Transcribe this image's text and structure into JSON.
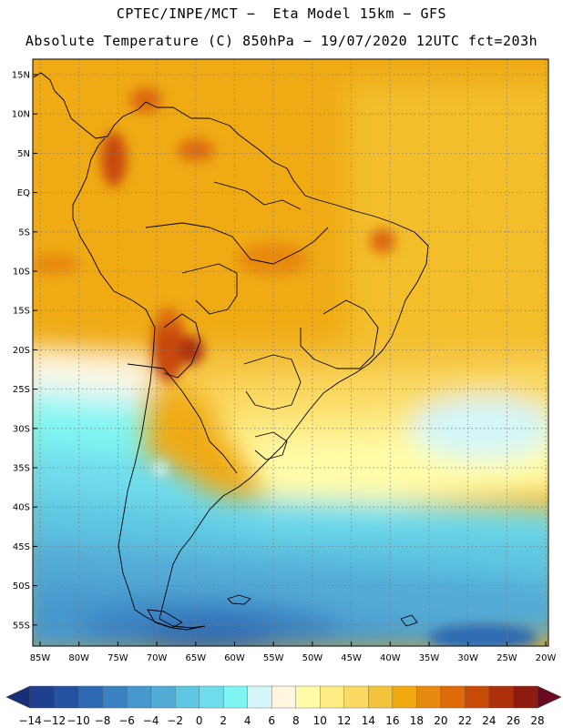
{
  "title_line1": "CPTEC/INPE/MCT −  Eta Model 15km − GFS",
  "title_line2": "Absolute Temperature (C) 850hPa − 19/07/2020 12UTC fct=203h",
  "lat_labels": [
    "15N",
    "10N",
    "5N",
    "EQ",
    "5S",
    "10S",
    "15S",
    "20S",
    "25S",
    "30S",
    "35S",
    "40S",
    "45S",
    "50S",
    "55S"
  ],
  "lon_labels": [
    "85W",
    "80W",
    "75W",
    "70W",
    "65W",
    "60W",
    "55W",
    "50W",
    "45W",
    "40W",
    "35W",
    "30W",
    "25W",
    "20W"
  ],
  "colorbar": {
    "labels": [
      "-14",
      "-12",
      "-10",
      "-8",
      "-6",
      "-4",
      "-2",
      "0",
      "2",
      "4",
      "6",
      "8",
      "10",
      "12",
      "14",
      "16",
      "18",
      "20",
      "22",
      "24",
      "26",
      "28"
    ],
    "colors": [
      "#1f3f8f",
      "#2452a0",
      "#2e6ab3",
      "#3a82c2",
      "#4698cd",
      "#52abd6",
      "#5ec6e2",
      "#6fdcec",
      "#7ff5f2",
      "#d4f6f8",
      "#fff6e0",
      "#fffca8",
      "#fdeb84",
      "#fbd962",
      "#f4c33c",
      "#eeaa10",
      "#e88a10",
      "#de6a0a",
      "#c84a08",
      "#ae300a",
      "#8c1c10"
    ],
    "under_color": "#1a2e78",
    "over_color": "#6a0a20"
  }
}
